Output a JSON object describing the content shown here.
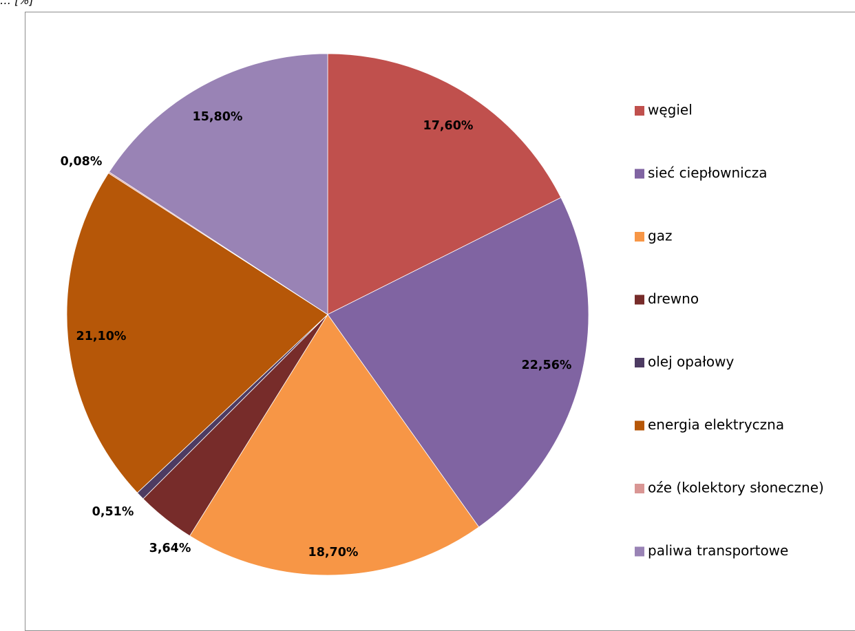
{
  "caption": "… [%]",
  "chart_data": {
    "type": "pie",
    "title": "",
    "legend_position": "right",
    "slices": [
      {
        "label": "węgiel",
        "value": 17.6,
        "display": "17,60%",
        "color": "#C0504D"
      },
      {
        "label": "sieć ciepłownicza",
        "value": 22.56,
        "display": "22,56%",
        "color": "#8064A2"
      },
      {
        "label": "gaz",
        "value": 18.7,
        "display": "18,70%",
        "color": "#F79646"
      },
      {
        "label": "drewno",
        "value": 3.64,
        "display": "3,64%",
        "color": "#772C2A"
      },
      {
        "label": "olej opałowy",
        "value": 0.51,
        "display": "0,51%",
        "color": "#4D3B62"
      },
      {
        "label": "energia elektryczna",
        "value": 21.1,
        "display": "21,10%",
        "color": "#B65708"
      },
      {
        "label": "oźe (kolektory słoneczne)",
        "value": 0.08,
        "display": "0,08%",
        "color": "#D99694"
      },
      {
        "label": "paliwa transportowe",
        "value": 15.8,
        "display": "15,80%",
        "color": "#9983B5"
      }
    ]
  }
}
